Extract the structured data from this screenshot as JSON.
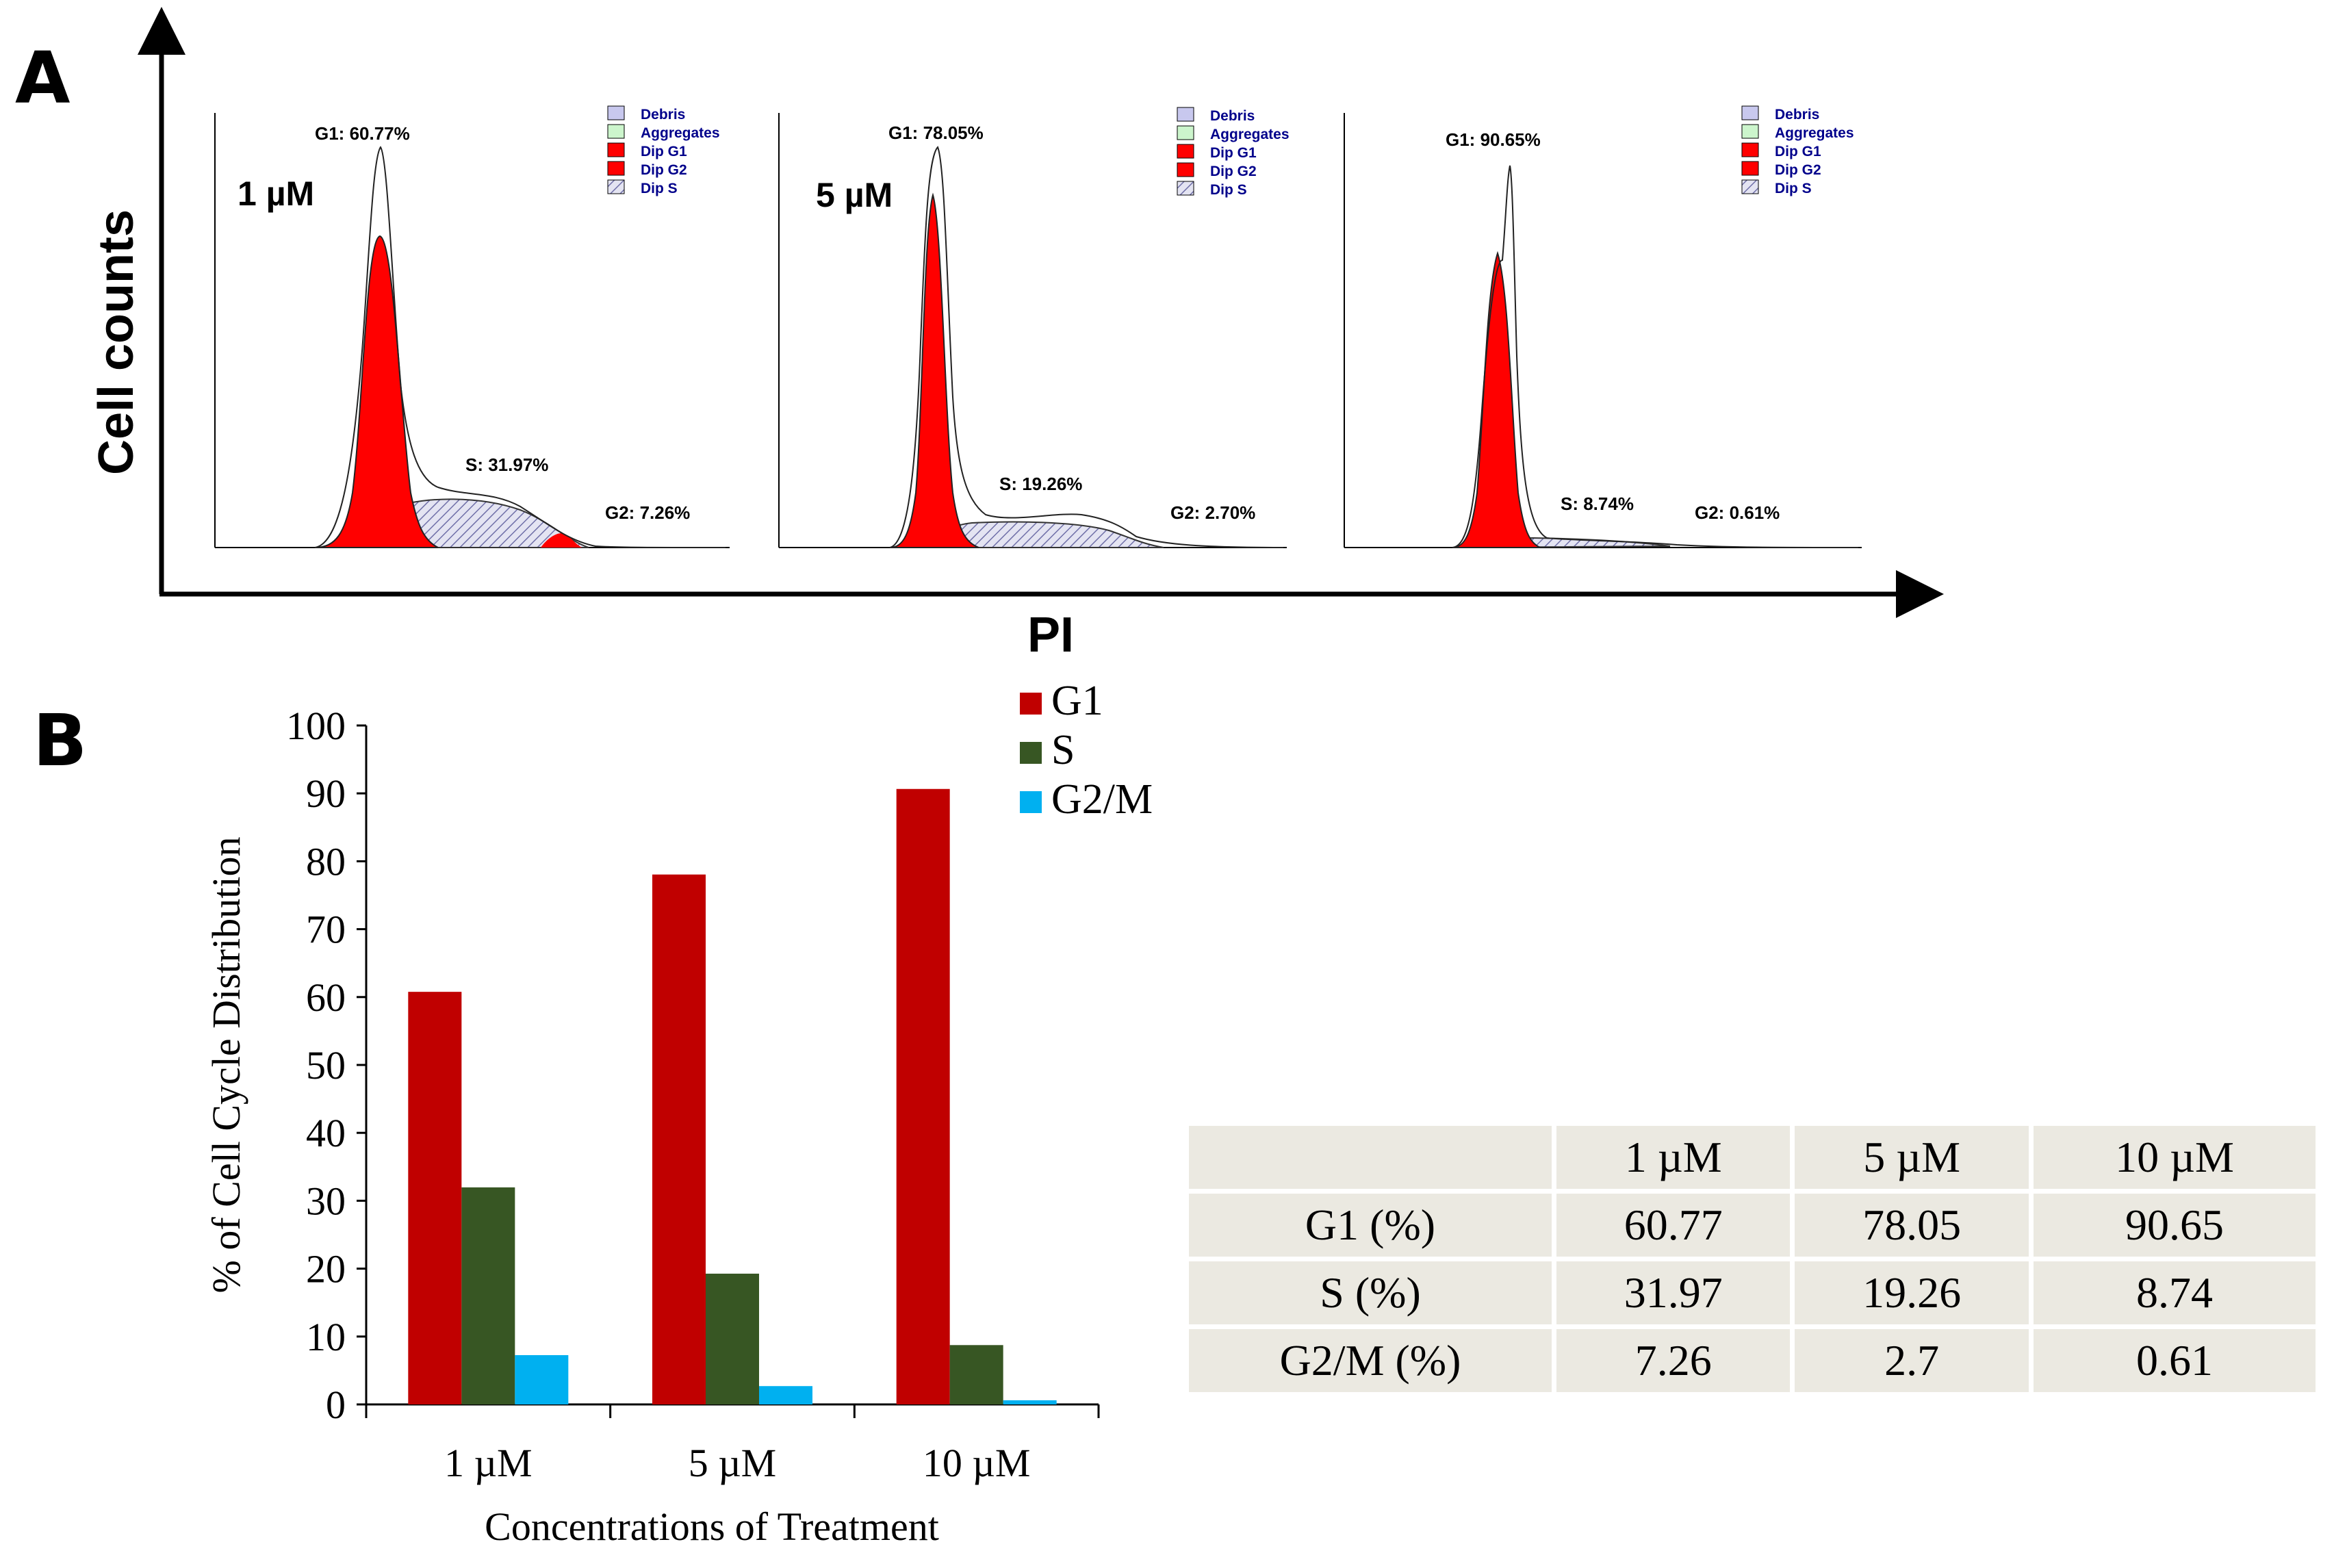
{
  "panel_a": {
    "letter": "A",
    "y_axis_title": "Cell counts",
    "x_axis_title": "PI",
    "legend": [
      "Debris",
      "Aggregates",
      "Dip G1",
      "Dip G2",
      "Dip S"
    ],
    "histograms": [
      {
        "concentration": "1 µM",
        "g1": "G1: 60.77%",
        "s": "S: 31.97%",
        "g2": "G2: 7.26%"
      },
      {
        "concentration": "5 µM",
        "g1": "G1: 78.05%",
        "s": "S: 19.26%",
        "g2": "G2: 2.70%"
      },
      {
        "concentration": "",
        "g1": "G1: 90.65%",
        "s": "S: 8.74%",
        "g2": "G2: 0.61%"
      }
    ]
  },
  "panel_b": {
    "letter": "B",
    "colors": {
      "G1": "#c00000",
      "S": "#375623",
      "G2/M": "#00b0f0"
    }
  },
  "chart_data": {
    "type": "bar",
    "title": "",
    "categories": [
      "1 µM",
      "5 µM",
      "10 µM"
    ],
    "series": [
      {
        "name": "G1",
        "values": [
          60.77,
          78.05,
          90.65
        ]
      },
      {
        "name": "S",
        "values": [
          31.97,
          19.26,
          8.74
        ]
      },
      {
        "name": "G2/M",
        "values": [
          7.26,
          2.7,
          0.61
        ]
      }
    ],
    "xlabel": "Concentrations of Treatment",
    "ylabel": "% of Cell Cycle Distribution",
    "ylim": [
      0,
      100
    ],
    "yticks": [
      "0",
      "10",
      "20",
      "30",
      "40",
      "50",
      "60",
      "70",
      "80",
      "90",
      "100"
    ],
    "legend": "top-right"
  },
  "table": {
    "header": [
      "",
      "1 µM",
      "5 µM",
      "10 µM"
    ],
    "rows": [
      [
        "G1 (%)",
        "60.77",
        "78.05",
        "90.65"
      ],
      [
        "S (%)",
        "31.97",
        "19.26",
        "8.74"
      ],
      [
        "G2/M (%)",
        "7.26",
        "2.7",
        "0.61"
      ]
    ]
  }
}
